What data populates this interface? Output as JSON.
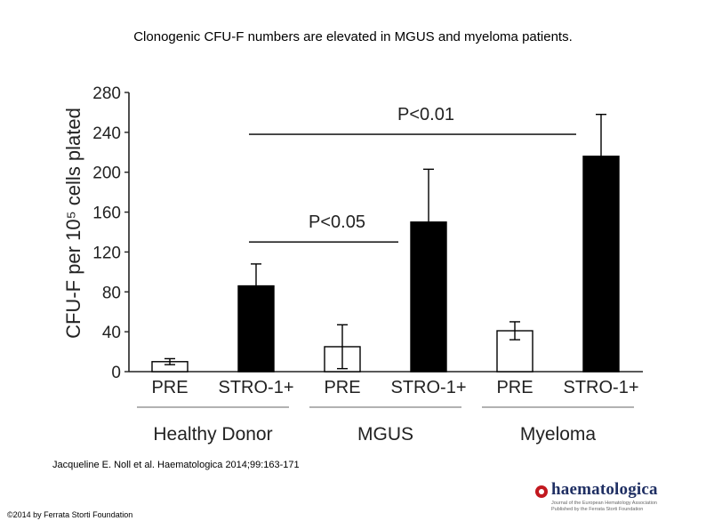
{
  "slide": {
    "title": "Clonogenic CFU-F numbers are elevated in MGUS and myeloma patients.",
    "citation": "Jacqueline E. Noll et al. Haematologica 2014;99:163-171",
    "copyright": "©2014 by Ferrata Storti Foundation",
    "logo": {
      "text": "haematologica",
      "line1": "Journal of the European Hematology Association",
      "line2": "Published by the Ferrata Storti Foundation"
    }
  },
  "chart_data": {
    "type": "bar",
    "title": "",
    "xlabel": "",
    "ylabel": "CFU-F per 10⁵ cells plated",
    "ylim": [
      0,
      280
    ],
    "yticks": [
      0,
      40,
      80,
      120,
      160,
      200,
      240,
      280
    ],
    "grid": false,
    "categories": [
      "PRE",
      "STRO-1+",
      "PRE",
      "STRO-1+",
      "PRE",
      "STRO-1+"
    ],
    "groups": [
      {
        "label": "Healthy Donor",
        "categories": [
          0,
          1
        ]
      },
      {
        "label": "MGUS",
        "categories": [
          2,
          3
        ]
      },
      {
        "label": "Myeloma",
        "categories": [
          4,
          5
        ]
      }
    ],
    "values": [
      10,
      86,
      25,
      150,
      41,
      216
    ],
    "errors": [
      3,
      22,
      22,
      53,
      9,
      42
    ],
    "fills": [
      "#ffffff",
      "#000000",
      "#ffffff",
      "#000000",
      "#ffffff",
      "#000000"
    ],
    "significance": [
      {
        "label": "P<0.05",
        "from": 1,
        "to": 3
      },
      {
        "label": "P<0.01",
        "from": 1,
        "to": 5
      }
    ]
  }
}
